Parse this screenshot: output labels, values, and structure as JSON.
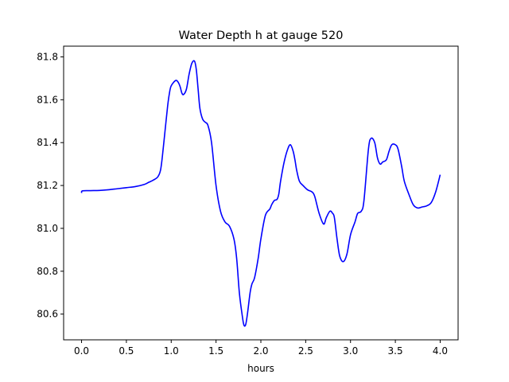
{
  "chart_data": {
    "type": "line",
    "title": "Water Depth h at gauge 520",
    "xlabel": "hours",
    "ylabel": "",
    "xlim": [
      -0.2,
      4.2
    ],
    "ylim": [
      80.48,
      81.85
    ],
    "grid": false,
    "x_ticks": [
      "0.0",
      "0.5",
      "1.0",
      "1.5",
      "2.0",
      "2.5",
      "3.0",
      "3.5",
      "4.0"
    ],
    "y_ticks": [
      "80.6",
      "80.8",
      "81.0",
      "81.2",
      "81.4",
      "81.6",
      "81.8"
    ],
    "series": [
      {
        "color": "#0000ff",
        "x": [
          0.0,
          0.01,
          0.1,
          0.2,
          0.3,
          0.4,
          0.5,
          0.6,
          0.7,
          0.75,
          0.8,
          0.85,
          0.88,
          0.9,
          0.93,
          0.96,
          0.98,
          1.0,
          1.05,
          1.08,
          1.1,
          1.12,
          1.14,
          1.17,
          1.2,
          1.23,
          1.26,
          1.28,
          1.3,
          1.32,
          1.35,
          1.38,
          1.41,
          1.45,
          1.5,
          1.55,
          1.6,
          1.65,
          1.7,
          1.73,
          1.76,
          1.79,
          1.81,
          1.83,
          1.85,
          1.88,
          1.9,
          1.93,
          1.97,
          2.0,
          2.05,
          2.1,
          2.12,
          2.15,
          2.18,
          2.2,
          2.22,
          2.26,
          2.3,
          2.33,
          2.36,
          2.38,
          2.4,
          2.43,
          2.47,
          2.52,
          2.57,
          2.6,
          2.65,
          2.7,
          2.73,
          2.77,
          2.8,
          2.82,
          2.85,
          2.88,
          2.92,
          2.96,
          3.0,
          3.05,
          3.08,
          3.12,
          3.15,
          3.2,
          3.23,
          3.27,
          3.3,
          3.33,
          3.36,
          3.4,
          3.43,
          3.46,
          3.5,
          3.53,
          3.57,
          3.6,
          3.65,
          3.7,
          3.75,
          3.8,
          3.85,
          3.9,
          3.95,
          4.0
        ],
        "y": [
          81.165,
          81.175,
          81.176,
          81.177,
          81.18,
          81.185,
          81.19,
          81.195,
          81.205,
          81.215,
          81.225,
          81.24,
          81.27,
          81.33,
          81.45,
          81.57,
          81.63,
          81.665,
          81.69,
          81.68,
          81.66,
          81.63,
          81.625,
          81.65,
          81.72,
          81.77,
          81.78,
          81.74,
          81.65,
          81.56,
          81.51,
          81.495,
          81.48,
          81.4,
          81.2,
          81.08,
          81.03,
          81.01,
          80.95,
          80.86,
          80.7,
          80.6,
          80.55,
          80.55,
          80.6,
          80.7,
          80.74,
          80.77,
          80.86,
          80.95,
          81.06,
          81.09,
          81.11,
          81.13,
          81.135,
          81.16,
          81.22,
          81.31,
          81.37,
          81.39,
          81.36,
          81.32,
          81.27,
          81.22,
          81.2,
          81.18,
          81.17,
          81.15,
          81.07,
          81.02,
          81.05,
          81.08,
          81.07,
          81.05,
          80.95,
          80.87,
          80.845,
          80.88,
          80.97,
          81.03,
          81.07,
          81.08,
          81.13,
          81.37,
          81.42,
          81.4,
          81.33,
          81.3,
          81.31,
          81.32,
          81.36,
          81.39,
          81.39,
          81.37,
          81.29,
          81.22,
          81.16,
          81.11,
          81.095,
          81.1,
          81.105,
          81.12,
          81.17,
          81.25
        ]
      }
    ]
  }
}
